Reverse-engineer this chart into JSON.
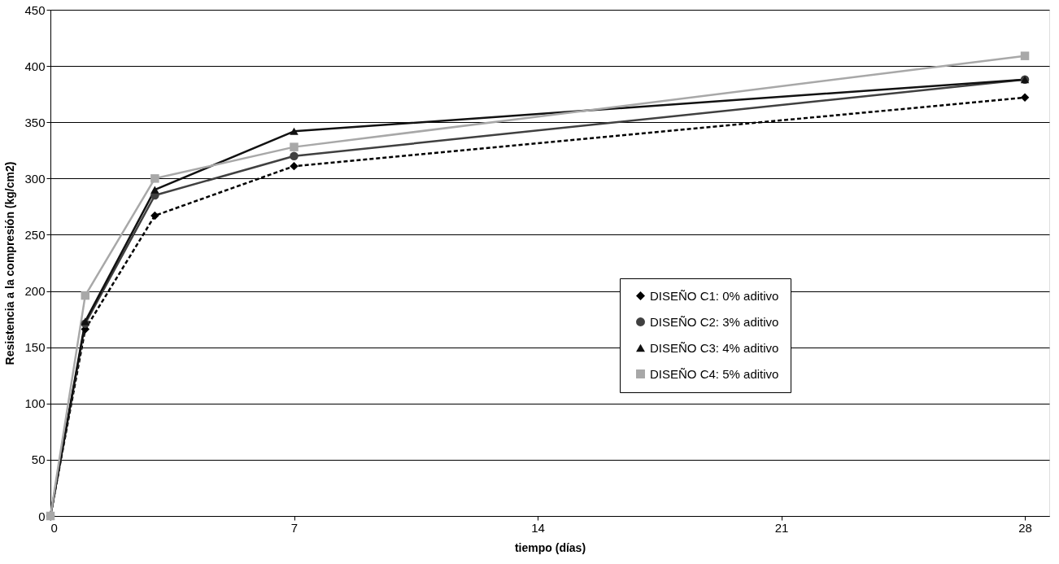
{
  "chart_data": {
    "type": "line",
    "xlabel": "tiempo (días)",
    "ylabel": "Resistencia a la compresión (kg/cm2)",
    "xlim": [
      0,
      28.7
    ],
    "xticks": [
      0,
      7,
      14,
      21,
      28
    ],
    "ylim": [
      0,
      450
    ],
    "yticks": [
      0,
      50,
      100,
      150,
      200,
      250,
      300,
      350,
      400,
      450
    ],
    "grid": "y",
    "legend": "bottom right",
    "series": [
      {
        "name": "DISEÑO C1: 0% aditivo",
        "color": "#000000",
        "marker": "diamond",
        "line_style": "dashed",
        "x": [
          0,
          1,
          3,
          7,
          28
        ],
        "values": [
          0,
          166,
          267,
          311,
          372
        ]
      },
      {
        "name": "DISEÑO C2: 3% aditivo",
        "color": "#404040",
        "marker": "circle",
        "line_style": "solid",
        "x": [
          0,
          1,
          3,
          7,
          28
        ],
        "values": [
          0,
          171,
          285,
          320,
          388
        ]
      },
      {
        "name": "DISEÑO C3: 4% aditivo",
        "color": "#111111",
        "marker": "triangle",
        "line_style": "solid",
        "x": [
          0,
          1,
          3,
          7,
          28
        ],
        "values": [
          0,
          173,
          290,
          342,
          388
        ]
      },
      {
        "name": "DISEÑO C4: 5% aditivo",
        "color": "#a8a8a8",
        "marker": "square",
        "line_style": "solid",
        "x": [
          0,
          1,
          3,
          7,
          28
        ],
        "values": [
          0,
          196,
          300,
          328,
          409
        ]
      }
    ]
  }
}
